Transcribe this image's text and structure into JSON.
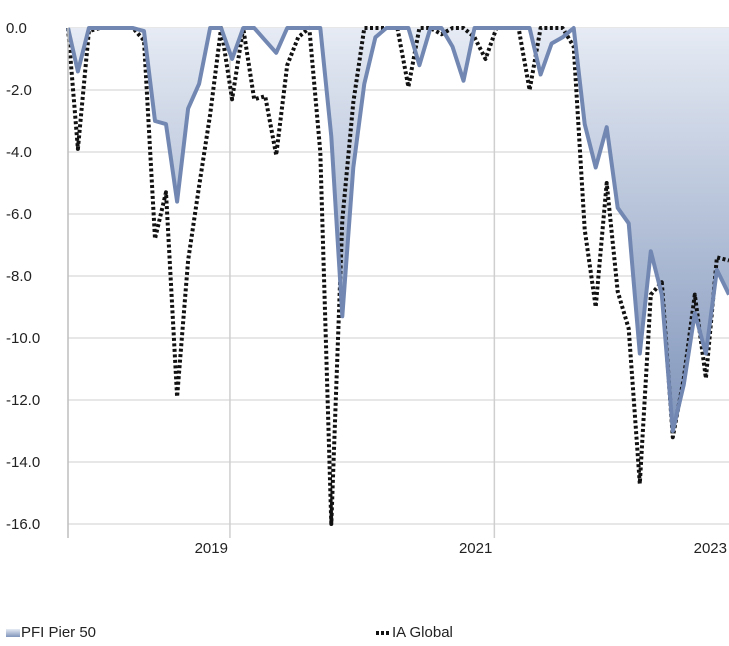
{
  "chart_data": {
    "type": "area",
    "title": "",
    "xlabel": "",
    "ylabel": "",
    "ylim": [
      -16,
      0
    ],
    "yticks": [
      "0.0",
      "-2.0",
      "-4.0",
      "-6.0",
      "-8.0",
      "-10.0",
      "-12.0",
      "-14.0",
      "-16.0"
    ],
    "xlim": [
      2017.33,
      2023.33
    ],
    "xticks": [
      {
        "x": 2018.8,
        "label": "2019"
      },
      {
        "x": 2021.2,
        "label": "2021"
      },
      {
        "x": 2023.33,
        "label": "2023"
      }
    ],
    "grid": "horizontal",
    "legend_position": "bottom",
    "series": [
      {
        "name": "PFI Pier 50",
        "style": "area",
        "color": "#7f94ba",
        "x": [
          2017.33,
          2017.42,
          2017.52,
          2017.62,
          2017.72,
          2017.82,
          2017.92,
          2018.02,
          2018.12,
          2018.22,
          2018.32,
          2018.42,
          2018.52,
          2018.62,
          2018.72,
          2018.82,
          2018.92,
          2019.02,
          2019.12,
          2019.22,
          2019.32,
          2019.42,
          2019.52,
          2019.62,
          2019.72,
          2019.82,
          2019.92,
          2020.02,
          2020.12,
          2020.22,
          2020.32,
          2020.42,
          2020.52,
          2020.62,
          2020.72,
          2020.82,
          2020.92,
          2021.02,
          2021.12,
          2021.22,
          2021.32,
          2021.42,
          2021.52,
          2021.62,
          2021.72,
          2021.82,
          2021.92,
          2022.02,
          2022.12,
          2022.22,
          2022.32,
          2022.42,
          2022.52,
          2022.62,
          2022.72,
          2022.82,
          2022.92,
          2023.02,
          2023.12,
          2023.22,
          2023.33
        ],
        "y": [
          0,
          -1.4,
          0,
          0,
          0,
          0,
          0,
          -0.1,
          -3.0,
          -3.1,
          -5.6,
          -2.6,
          -1.8,
          0,
          0,
          -1.0,
          0,
          0,
          -0.4,
          -0.8,
          0,
          0,
          0,
          0,
          -3.5,
          -9.3,
          -4.5,
          -1.8,
          -0.3,
          0,
          0,
          0,
          -1.2,
          0,
          0,
          -0.6,
          -1.7,
          0,
          0,
          0,
          0,
          0,
          0,
          -1.5,
          -0.5,
          -0.3,
          0,
          -3.1,
          -4.5,
          -3.2,
          -5.8,
          -6.3,
          -10.5,
          -7.2,
          -8.6,
          -13.0,
          -11.5,
          -9.2,
          -10.5,
          -7.8,
          -8.6
        ]
      },
      {
        "name": "IA Global",
        "style": "dotted",
        "color": "#111111",
        "x": [
          2017.33,
          2017.42,
          2017.52,
          2017.62,
          2017.72,
          2017.82,
          2017.92,
          2018.02,
          2018.12,
          2018.22,
          2018.32,
          2018.42,
          2018.52,
          2018.62,
          2018.72,
          2018.82,
          2018.92,
          2019.02,
          2019.12,
          2019.22,
          2019.32,
          2019.42,
          2019.52,
          2019.62,
          2019.72,
          2019.82,
          2019.92,
          2020.02,
          2020.12,
          2020.22,
          2020.32,
          2020.42,
          2020.52,
          2020.62,
          2020.72,
          2020.82,
          2020.92,
          2021.02,
          2021.12,
          2021.22,
          2021.32,
          2021.42,
          2021.52,
          2021.62,
          2021.72,
          2021.82,
          2021.92,
          2022.02,
          2022.12,
          2022.22,
          2022.32,
          2022.42,
          2022.52,
          2022.62,
          2022.72,
          2022.82,
          2022.92,
          2023.02,
          2023.12,
          2023.22,
          2023.33
        ],
        "y": [
          0,
          -3.9,
          -0.1,
          0,
          0,
          0,
          0,
          -0.4,
          -6.8,
          -5.3,
          -11.9,
          -7.5,
          -5.1,
          -2.8,
          0,
          -2.3,
          0,
          -2.3,
          -2.2,
          -4.1,
          -1.2,
          -0.3,
          0,
          -4.0,
          -16.0,
          -6.2,
          -2.4,
          0,
          0,
          0,
          0,
          -1.9,
          0,
          0,
          -0.2,
          0,
          0,
          -0.3,
          -1.0,
          0,
          0,
          0,
          -2.0,
          0,
          0,
          0,
          -0.6,
          -6.5,
          -9.0,
          -5.0,
          -8.5,
          -9.7,
          -14.7,
          -8.6,
          -8.2,
          -13.2,
          -11.3,
          -8.6,
          -11.3,
          -7.4,
          -7.5
        ]
      }
    ]
  },
  "legend": {
    "items": [
      {
        "label": "PFI Pier 50",
        "color": "#7f94ba"
      },
      {
        "label": "IA Global",
        "color": "#111111"
      }
    ]
  }
}
